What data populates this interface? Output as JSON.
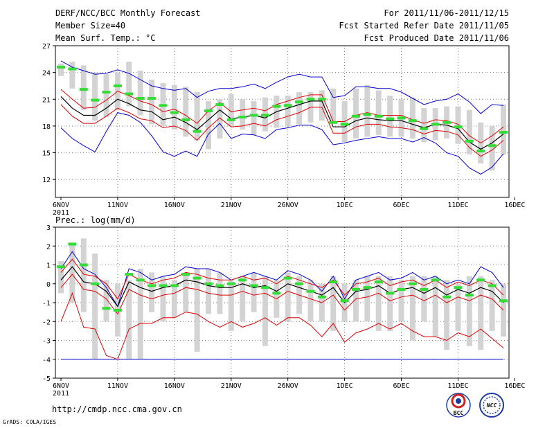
{
  "header": {
    "title": "DERF/NCC/BCC Monthly Forecast",
    "member_size": "Member Size=40",
    "variable": "Mean Surf. Temp.: °C",
    "period": "For 2011/11/06-2011/12/15",
    "started_refer": "Fcst Started Refer Date 2011/11/05",
    "produced": "Fcst Produced Date 2011/11/06"
  },
  "footer": {
    "url": "http://cmdp.ncc.cma.gov.cn",
    "grads": "GrADS: COLA/IGES",
    "logo_bcc": "BCC",
    "logo_ncc": "NCC"
  },
  "colors": {
    "box": "#d3d3d3",
    "ensemble_mean": "#000000",
    "spread": "#e00000",
    "envelope": "#0000d0",
    "median": "#33dd33"
  },
  "chart_data": [
    {
      "type": "line",
      "title": "Mean Surf. Temp.: °C",
      "x": [
        "2011/11/06",
        "2011/11/07",
        "2011/11/08",
        "2011/11/09",
        "2011/11/10",
        "2011/11/11",
        "2011/11/12",
        "2011/11/13",
        "2011/11/14",
        "2011/11/15",
        "2011/11/16",
        "2011/11/17",
        "2011/11/18",
        "2011/11/19",
        "2011/11/20",
        "2011/11/21",
        "2011/11/22",
        "2011/11/23",
        "2011/11/24",
        "2011/11/25",
        "2011/11/26",
        "2011/11/27",
        "2011/11/28",
        "2011/11/29",
        "2011/11/30",
        "2011/12/01",
        "2011/12/02",
        "2011/12/03",
        "2011/12/04",
        "2011/12/05",
        "2011/12/06",
        "2011/12/07",
        "2011/12/08",
        "2011/12/09",
        "2011/12/10",
        "2011/12/11",
        "2011/12/12",
        "2011/12/13",
        "2011/12/14",
        "2011/12/15"
      ],
      "xtick_labels": [
        "6NOV\n2011",
        "11NOV",
        "16NOV",
        "21NOV",
        "26NOV",
        "1DEC",
        "6DEC",
        "11DEC",
        "16DEC"
      ],
      "ylim": [
        10,
        27
      ],
      "yticks": [
        12,
        15,
        18,
        21,
        24,
        27
      ],
      "grid": true,
      "series": [
        {
          "name": "box_top",
          "values": [
            25.0,
            25.2,
            24.8,
            24.0,
            23.8,
            24.0,
            25.2,
            24.2,
            23.2,
            22.8,
            22.6,
            22.4,
            21.8,
            20.8,
            21.0,
            21.6,
            21.0,
            20.8,
            21.2,
            21.4,
            21.4,
            21.8,
            21.8,
            22.0,
            22.2,
            20.8,
            22.2,
            22.6,
            22.0,
            21.4,
            21.0,
            21.2,
            20.0,
            20.0,
            20.2,
            20.2,
            19.8,
            18.4,
            18.0,
            20.4
          ]
        },
        {
          "name": "box_bottom",
          "values": [
            23.6,
            22.2,
            19.8,
            18.6,
            19.0,
            19.8,
            20.2,
            19.2,
            18.2,
            18.0,
            17.6,
            16.8,
            16.4,
            15.4,
            16.6,
            18.0,
            17.6,
            17.0,
            17.4,
            17.8,
            18.0,
            18.2,
            18.4,
            18.6,
            18.4,
            16.2,
            16.6,
            16.8,
            17.0,
            16.8,
            16.8,
            16.6,
            16.2,
            16.4,
            16.6,
            16.0,
            14.8,
            13.8,
            13.0,
            14.8
          ]
        },
        {
          "name": "median",
          "values": [
            24.6,
            24.4,
            22.1,
            20.9,
            21.8,
            22.5,
            21.6,
            21.1,
            21.1,
            20.3,
            19.5,
            18.7,
            17.4,
            19.7,
            20.4,
            18.7,
            19.0,
            19.2,
            19.2,
            20.2,
            20.3,
            20.7,
            21.0,
            21.0,
            18.4,
            18.2,
            19.1,
            19.3,
            19.1,
            18.8,
            18.9,
            18.6,
            17.7,
            18.2,
            18.4,
            17.9,
            16.3,
            15.2,
            15.8,
            17.3
          ]
        },
        {
          "name": "ensemble_mean",
          "values": [
            21.3,
            20.0,
            19.2,
            19.2,
            20.0,
            21.0,
            20.5,
            19.8,
            19.6,
            18.7,
            19.0,
            18.4,
            17.6,
            18.7,
            19.8,
            18.8,
            19.0,
            19.2,
            18.9,
            19.6,
            20.0,
            20.4,
            20.8,
            20.8,
            17.9,
            17.9,
            18.6,
            18.9,
            18.7,
            18.6,
            18.6,
            18.2,
            17.8,
            18.2,
            18.1,
            17.7,
            16.2,
            15.4,
            16.1,
            17.1
          ]
        },
        {
          "name": "spread_upper",
          "values": [
            22.1,
            21.0,
            20.0,
            20.1,
            20.9,
            21.9,
            21.4,
            20.8,
            20.4,
            19.6,
            19.9,
            19.2,
            18.3,
            19.7,
            20.6,
            19.6,
            19.8,
            20.0,
            19.7,
            20.4,
            20.8,
            21.2,
            21.5,
            21.5,
            18.5,
            18.5,
            19.2,
            19.5,
            19.2,
            19.2,
            19.2,
            18.7,
            18.3,
            18.7,
            18.6,
            18.2,
            16.9,
            16.1,
            16.9,
            17.9
          ]
        },
        {
          "name": "spread_lower",
          "values": [
            20.4,
            19.1,
            18.3,
            18.3,
            19.1,
            20.0,
            19.5,
            18.8,
            18.6,
            17.8,
            18.0,
            17.5,
            16.4,
            17.8,
            18.9,
            17.9,
            18.0,
            18.3,
            18.0,
            18.7,
            19.1,
            19.5,
            20.1,
            20.1,
            17.2,
            17.2,
            17.9,
            18.2,
            18.2,
            17.9,
            17.8,
            17.6,
            17.1,
            17.5,
            17.4,
            17.0,
            15.6,
            14.6,
            15.3,
            16.4
          ]
        },
        {
          "name": "envelope_upper",
          "values": [
            25.3,
            24.6,
            24.2,
            23.8,
            23.9,
            24.3,
            23.9,
            23.2,
            22.5,
            22.2,
            22.0,
            22.2,
            21.2,
            21.9,
            22.2,
            22.2,
            22.4,
            22.7,
            22.2,
            22.9,
            23.5,
            23.8,
            23.5,
            23.5,
            21.2,
            21.4,
            22.4,
            22.4,
            22.2,
            22.2,
            21.8,
            21.1,
            20.4,
            20.8,
            21.0,
            21.6,
            20.7,
            19.4,
            20.4,
            20.3
          ]
        },
        {
          "name": "envelope_lower",
          "values": [
            17.8,
            16.6,
            15.8,
            15.1,
            17.4,
            19.5,
            19.2,
            18.4,
            16.9,
            15.1,
            14.6,
            15.2,
            14.6,
            17.1,
            18.3,
            16.6,
            17.1,
            17.0,
            16.6,
            17.6,
            17.8,
            18.1,
            18.1,
            17.6,
            15.9,
            16.1,
            16.4,
            16.6,
            16.8,
            16.6,
            16.6,
            16.2,
            16.7,
            16.1,
            15.0,
            14.6,
            13.3,
            12.6,
            13.4,
            14.9
          ]
        }
      ]
    },
    {
      "type": "line",
      "title": "Prec.: log(mm/d)",
      "x": [
        "2011/11/06",
        "2011/11/07",
        "2011/11/08",
        "2011/11/09",
        "2011/11/10",
        "2011/11/11",
        "2011/11/12",
        "2011/11/13",
        "2011/11/14",
        "2011/11/15",
        "2011/11/16",
        "2011/11/17",
        "2011/11/18",
        "2011/11/19",
        "2011/11/20",
        "2011/11/21",
        "2011/11/22",
        "2011/11/23",
        "2011/11/24",
        "2011/11/25",
        "2011/11/26",
        "2011/11/27",
        "2011/11/28",
        "2011/11/29",
        "2011/11/30",
        "2011/12/01",
        "2011/12/02",
        "2011/12/03",
        "2011/12/04",
        "2011/12/05",
        "2011/12/06",
        "2011/12/07",
        "2011/12/08",
        "2011/12/09",
        "2011/12/10",
        "2011/12/11",
        "2011/12/12",
        "2011/12/13",
        "2011/12/14",
        "2011/12/15"
      ],
      "xtick_labels": [
        "6NOV\n2011",
        "11NOV",
        "16NOV",
        "21NOV",
        "26NOV",
        "1DEC",
        "6DEC",
        "11DEC",
        "16DEC"
      ],
      "ylim": [
        -5,
        3
      ],
      "yticks": [
        -5,
        -4,
        -3,
        -2,
        -1,
        0,
        1,
        2,
        3
      ],
      "grid": true,
      "series": [
        {
          "name": "box_top",
          "values": [
            1.2,
            2.2,
            2.4,
            1.6,
            0.2,
            0.0,
            0.2,
            0.8,
            0.6,
            0.4,
            0.2,
            0.6,
            0.8,
            0.8,
            0.6,
            0.2,
            0.4,
            0.6,
            0.4,
            0.2,
            0.6,
            0.4,
            0.2,
            0.0,
            0.4,
            0.0,
            0.2,
            0.4,
            0.4,
            0.4,
            0.2,
            0.4,
            0.4,
            0.4,
            0.2,
            0.0,
            0.4,
            0.4,
            0.2,
            0.0
          ]
        },
        {
          "name": "box_bottom",
          "values": [
            -0.5,
            -1.0,
            -1.5,
            -4.0,
            -2.0,
            -2.8,
            -4.0,
            -4.0,
            -1.5,
            -2.0,
            -1.8,
            -1.5,
            -3.6,
            -1.6,
            -1.6,
            -2.5,
            -2.0,
            -1.5,
            -3.3,
            -1.8,
            -2.0,
            -1.6,
            -2.0,
            -2.0,
            -2.5,
            -2.0,
            -2.0,
            -2.0,
            -2.5,
            -2.5,
            -2.0,
            -3.0,
            -2.0,
            -2.8,
            -3.5,
            -2.5,
            -3.3,
            -3.5,
            -2.5,
            -2.8
          ]
        },
        {
          "name": "median",
          "values": [
            0.9,
            2.1,
            1.0,
            0.0,
            -1.3,
            -1.4,
            0.5,
            0.2,
            -0.1,
            -0.1,
            -0.1,
            0.5,
            0.3,
            0.0,
            -0.1,
            0.0,
            0.2,
            -0.1,
            -0.2,
            -0.5,
            0.3,
            0.0,
            -0.4,
            -0.7,
            0.1,
            -0.9,
            -0.3,
            -0.2,
            0.1,
            -0.5,
            -0.3,
            0.0,
            -0.3,
            0.2,
            -0.7,
            -0.2,
            -0.6,
            0.2,
            -0.1,
            -0.9
          ]
        },
        {
          "name": "ensemble_mean",
          "values": [
            0.2,
            0.9,
            0.1,
            0.0,
            -0.4,
            -1.2,
            0.1,
            -0.2,
            -0.4,
            -0.2,
            -0.1,
            0.2,
            0.1,
            -0.1,
            -0.2,
            -0.2,
            0.0,
            -0.2,
            -0.1,
            -0.4,
            0.0,
            -0.2,
            -0.4,
            -0.6,
            -0.2,
            -1.0,
            -0.4,
            -0.3,
            -0.1,
            -0.5,
            -0.3,
            -0.2,
            -0.5,
            -0.2,
            -0.6,
            -0.3,
            -0.5,
            -0.2,
            -0.4,
            -1.0
          ]
        },
        {
          "name": "spread_upper",
          "values": [
            0.6,
            1.3,
            0.5,
            0.4,
            0.0,
            -0.8,
            0.5,
            0.2,
            0.0,
            0.2,
            0.3,
            0.6,
            0.5,
            0.3,
            0.2,
            0.2,
            0.4,
            0.2,
            0.3,
            0.0,
            0.4,
            0.2,
            0.0,
            -0.2,
            0.2,
            -0.6,
            0.0,
            0.1,
            0.3,
            -0.1,
            0.1,
            0.2,
            -0.1,
            0.2,
            -0.2,
            0.1,
            -0.1,
            0.2,
            0.0,
            -0.6
          ]
        },
        {
          "name": "spread_lower",
          "values": [
            -0.2,
            0.5,
            -0.3,
            -0.4,
            -0.8,
            -1.6,
            -0.3,
            -0.6,
            -0.8,
            -0.6,
            -0.5,
            -0.2,
            -0.3,
            -0.5,
            -0.6,
            -0.6,
            -0.4,
            -0.6,
            -0.5,
            -0.8,
            -0.4,
            -0.6,
            -0.8,
            -1.0,
            -0.6,
            -1.4,
            -0.8,
            -0.7,
            -0.5,
            -0.9,
            -0.7,
            -0.6,
            -0.9,
            -0.6,
            -1.0,
            -0.7,
            -0.9,
            -0.6,
            -0.8,
            -1.4
          ]
        },
        {
          "name": "spread_lowest",
          "values": [
            -2.0,
            -0.5,
            -2.3,
            -2.4,
            -3.8,
            -4.0,
            -2.4,
            -2.1,
            -2.1,
            -1.8,
            -1.8,
            -1.5,
            -1.6,
            -2.0,
            -2.3,
            -2.0,
            -2.3,
            -2.1,
            -1.8,
            -2.2,
            -1.8,
            -1.8,
            -2.2,
            -2.8,
            -2.1,
            -3.1,
            -2.6,
            -2.4,
            -2.1,
            -2.4,
            -2.1,
            -2.5,
            -2.8,
            -2.8,
            -3.0,
            -2.6,
            -2.8,
            -2.4,
            -2.9,
            -3.4
          ]
        },
        {
          "name": "envelope_upper",
          "values": [
            0.8,
            1.7,
            0.8,
            0.5,
            -0.2,
            -1.2,
            0.8,
            0.6,
            0.2,
            0.4,
            0.5,
            0.9,
            0.8,
            0.8,
            0.6,
            0.2,
            0.4,
            0.6,
            0.4,
            0.2,
            0.7,
            0.5,
            0.2,
            -0.4,
            0.4,
            -0.8,
            0.2,
            0.4,
            0.6,
            0.2,
            0.3,
            0.6,
            0.2,
            0.4,
            0.0,
            0.2,
            0.0,
            0.9,
            0.6,
            -0.2
          ]
        },
        {
          "name": "envelope_lower",
          "values": [
            -4.0,
            -4.0,
            -4.0,
            -4.0,
            -4.0,
            -4.0,
            -4.0,
            -4.0,
            -4.0,
            -4.0,
            -4.0,
            -4.0,
            -4.0,
            -4.0,
            -4.0,
            -4.0,
            -4.0,
            -4.0,
            -4.0,
            -4.0,
            -4.0,
            -4.0,
            -4.0,
            -4.0,
            -4.0,
            -4.0,
            -4.0,
            -4.0,
            -4.0,
            -4.0,
            -4.0,
            -4.0,
            -4.0,
            -4.0,
            -4.0,
            -4.0,
            -4.0,
            -4.0,
            -4.0,
            -4.0
          ]
        }
      ]
    }
  ]
}
